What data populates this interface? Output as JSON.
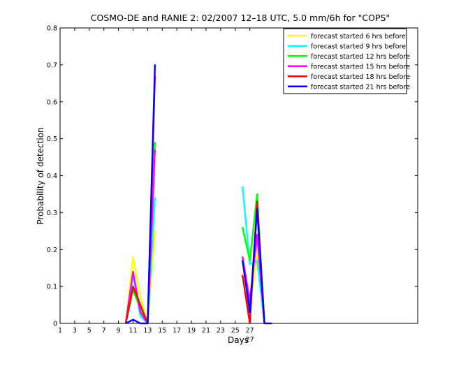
{
  "chart_data": {
    "type": "line",
    "title": "COSMO-DE and RANIE 2: 02/2007 12–18 UTC, 5.0 mm/6h for \"COPS\"",
    "xlabel": "Days",
    "ylabel": "Probability of detection",
    "xlim": [
      1,
      50
    ],
    "ylim": [
      0,
      0.8
    ],
    "xticks": [
      1,
      3,
      5,
      7,
      9,
      11,
      13,
      15,
      17,
      19,
      21,
      23,
      25,
      27
    ],
    "yticks": [
      0,
      0.1,
      0.2,
      0.3,
      0.4,
      0.5,
      0.6,
      0.7,
      0.8
    ],
    "extra_tick_label": {
      "value": 27,
      "text": "27"
    },
    "grid": false,
    "legend_position": "top-right",
    "series": [
      {
        "name": "forecast started 6 hrs before",
        "color": "#ffff00",
        "points": [
          [
            10,
            0
          ],
          [
            11,
            0.18
          ],
          [
            12,
            0.07
          ],
          [
            13,
            0
          ],
          [
            14,
            0.25
          ],
          [
            null,
            null
          ],
          [
            26,
            0.18
          ],
          [
            27,
            0.04
          ],
          [
            28,
            0.19
          ],
          [
            29,
            0
          ]
        ]
      },
      {
        "name": "forecast started 9 hrs before",
        "color": "#00ffff",
        "points": [
          [
            10,
            0
          ],
          [
            11,
            0.13
          ],
          [
            12,
            0.02
          ],
          [
            13,
            0
          ],
          [
            14,
            0.34
          ],
          [
            null,
            null
          ],
          [
            26,
            0.37
          ],
          [
            27,
            0.16
          ],
          [
            28,
            0.17
          ],
          [
            29,
            0
          ]
        ]
      },
      {
        "name": "forecast started 12 hrs before",
        "color": "#00ff00",
        "points": [
          [
            10,
            0
          ],
          [
            11,
            0.09
          ],
          [
            12,
            0.04
          ],
          [
            13,
            0
          ],
          [
            14,
            0.49
          ],
          [
            null,
            null
          ],
          [
            26,
            0.26
          ],
          [
            27,
            0.17
          ],
          [
            28,
            0.35
          ],
          [
            29,
            0
          ]
        ]
      },
      {
        "name": "forecast started 15 hrs before",
        "color": "#ff00ff",
        "points": [
          [
            10,
            0
          ],
          [
            11,
            0.14
          ],
          [
            12,
            0.03
          ],
          [
            13,
            0
          ],
          [
            14,
            0.47
          ],
          [
            null,
            null
          ],
          [
            26,
            0.18
          ],
          [
            27,
            0.06
          ],
          [
            28,
            0.24
          ],
          [
            29,
            0
          ]
        ]
      },
      {
        "name": "forecast started 18 hrs before",
        "color": "#ff0000",
        "points": [
          [
            10,
            0
          ],
          [
            11,
            0.1
          ],
          [
            12,
            0.05
          ],
          [
            13,
            0
          ],
          [
            14,
            0.67
          ],
          [
            null,
            null
          ],
          [
            26,
            0.13
          ],
          [
            27,
            0
          ],
          [
            28,
            0.33
          ],
          [
            29,
            0
          ]
        ]
      },
      {
        "name": "forecast started 21 hrs before",
        "color": "#0000ff",
        "points": [
          [
            10,
            0
          ],
          [
            11,
            0.01
          ],
          [
            12,
            0
          ],
          [
            13,
            0
          ],
          [
            14,
            0.7
          ],
          [
            null,
            null
          ],
          [
            26,
            0.17
          ],
          [
            27,
            0.03
          ],
          [
            28,
            0.31
          ],
          [
            29,
            0
          ],
          [
            30,
            0
          ]
        ]
      }
    ]
  }
}
